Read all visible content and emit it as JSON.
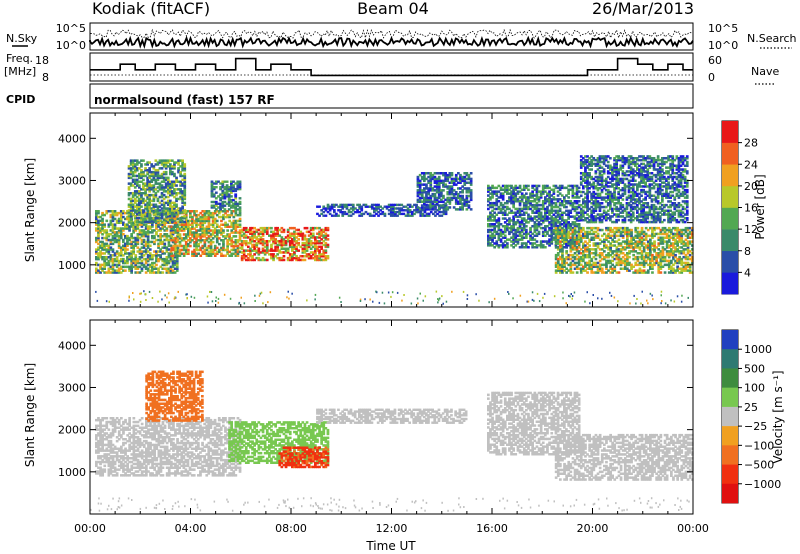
{
  "header": {
    "station": "Kodiak (fitACF)",
    "beam": "Beam 04",
    "date": "26/Mar/2013"
  },
  "summary_panel": {
    "left_labels": {
      "nsky": "N.Sky",
      "freq": "Freq.",
      "freq_unit": "[MHz]",
      "cpid": "CPID"
    },
    "right_labels": {
      "nsearch": "N.Search",
      "nave": "Nave"
    },
    "noise_ticks": [
      "10^5",
      "10^0"
    ],
    "freq_ticks": [
      "18",
      "8"
    ],
    "nave_ticks": [
      "60",
      "0"
    ],
    "cpid_text": "normalsound (fast) 157 RF"
  },
  "chart_data": [
    {
      "type": "heatmap",
      "name": "power",
      "ylabel": "Slant Range [km]",
      "xlabel": "",
      "ylim": [
        0,
        4600
      ],
      "yticks": [
        1000,
        2000,
        3000,
        4000
      ],
      "colorbar": {
        "label": "Power [dB]",
        "ticks": [
          "4",
          "8",
          "12",
          "16",
          "20",
          "24",
          "28"
        ],
        "colors": [
          "#1a1adc",
          "#2a4ea8",
          "#3a8a6a",
          "#52a852",
          "#b8c82a",
          "#f0a020",
          "#f06020",
          "#e81818"
        ]
      },
      "regions": [
        {
          "t0": 0.2,
          "t1": 3.5,
          "r0": 800,
          "r1": 2300,
          "v": 14
        },
        {
          "t0": 3.2,
          "t1": 6.0,
          "r0": 1200,
          "r1": 2300,
          "v": 18
        },
        {
          "t0": 6.0,
          "t1": 9.5,
          "r0": 1100,
          "r1": 1900,
          "v": 24
        },
        {
          "t0": 1.5,
          "t1": 3.8,
          "r0": 2000,
          "r1": 3500,
          "v": 12
        },
        {
          "t0": 4.8,
          "t1": 6.0,
          "r0": 2300,
          "r1": 3000,
          "v": 10
        },
        {
          "t0": 9.0,
          "t1": 14.2,
          "r0": 2150,
          "r1": 2450,
          "v": 6
        },
        {
          "t0": 13.0,
          "t1": 15.2,
          "r0": 2300,
          "r1": 3200,
          "v": 7
        },
        {
          "t0": 15.8,
          "t1": 19.5,
          "r0": 1400,
          "r1": 2900,
          "v": 9
        },
        {
          "t0": 18.5,
          "t1": 24.0,
          "r0": 800,
          "r1": 1900,
          "v": 16
        },
        {
          "t0": 19.5,
          "t1": 23.8,
          "r0": 2000,
          "r1": 3600,
          "v": 8
        }
      ]
    },
    {
      "type": "heatmap",
      "name": "velocity",
      "ylabel": "Slant Range [km]",
      "xlabel": "Time UT",
      "ylim": [
        0,
        4600
      ],
      "yticks": [
        1000,
        2000,
        3000,
        4000
      ],
      "xticks": [
        "00:00",
        "04:00",
        "08:00",
        "12:00",
        "16:00",
        "20:00",
        "00:00"
      ],
      "colorbar": {
        "label": "Velocity [m s⁻¹]",
        "ticks": [
          "1000",
          "500",
          "100",
          "25",
          "−25",
          "−100",
          "−500",
          "−1000"
        ],
        "colors": [
          "#2040c0",
          "#2e7a72",
          "#3e8c3e",
          "#78c850",
          "#c0c0c0",
          "#f0a020",
          "#f07020",
          "#f03010",
          "#e01010"
        ]
      },
      "regions": [
        {
          "t0": 0.2,
          "t1": 6.0,
          "r0": 900,
          "r1": 2300,
          "v": 0
        },
        {
          "t0": 2.2,
          "t1": 4.5,
          "r0": 2200,
          "r1": 3400,
          "v": -300
        },
        {
          "t0": 5.5,
          "t1": 9.5,
          "r0": 1200,
          "r1": 2200,
          "v": 50
        },
        {
          "t0": 7.5,
          "t1": 9.5,
          "r0": 1100,
          "r1": 1600,
          "v": -600
        },
        {
          "t0": 9.0,
          "t1": 15.0,
          "r0": 2150,
          "r1": 2500,
          "v": 0
        },
        {
          "t0": 15.8,
          "t1": 19.5,
          "r0": 1400,
          "r1": 2900,
          "v": 0
        },
        {
          "t0": 18.5,
          "t1": 24.0,
          "r0": 800,
          "r1": 1900,
          "v": 0
        }
      ]
    }
  ],
  "summary_series": {
    "freq_mhz": [
      {
        "t0": 0,
        "t1": 1.2,
        "v": 12
      },
      {
        "t0": 1.2,
        "t1": 1.8,
        "v": 14
      },
      {
        "t0": 1.8,
        "t1": 2.6,
        "v": 12
      },
      {
        "t0": 2.6,
        "t1": 3.4,
        "v": 14
      },
      {
        "t0": 3.4,
        "t1": 4.2,
        "v": 12
      },
      {
        "t0": 4.2,
        "t1": 5.0,
        "v": 14
      },
      {
        "t0": 5.0,
        "t1": 5.8,
        "v": 12
      },
      {
        "t0": 5.8,
        "t1": 6.6,
        "v": 16
      },
      {
        "t0": 6.6,
        "t1": 7.2,
        "v": 12
      },
      {
        "t0": 7.2,
        "t1": 8.0,
        "v": 14
      },
      {
        "t0": 8.0,
        "t1": 8.8,
        "v": 12
      },
      {
        "t0": 8.8,
        "t1": 9.6,
        "v": 10
      },
      {
        "t0": 9.6,
        "t1": 19.8,
        "v": 10
      },
      {
        "t0": 19.8,
        "t1": 21.0,
        "v": 12
      },
      {
        "t0": 21.0,
        "t1": 21.8,
        "v": 16
      },
      {
        "t0": 21.8,
        "t1": 22.4,
        "v": 14
      },
      {
        "t0": 22.4,
        "t1": 23.0,
        "v": 12
      },
      {
        "t0": 23.0,
        "t1": 23.6,
        "v": 14
      },
      {
        "t0": 23.6,
        "t1": 24.0,
        "v": 12
      }
    ]
  }
}
